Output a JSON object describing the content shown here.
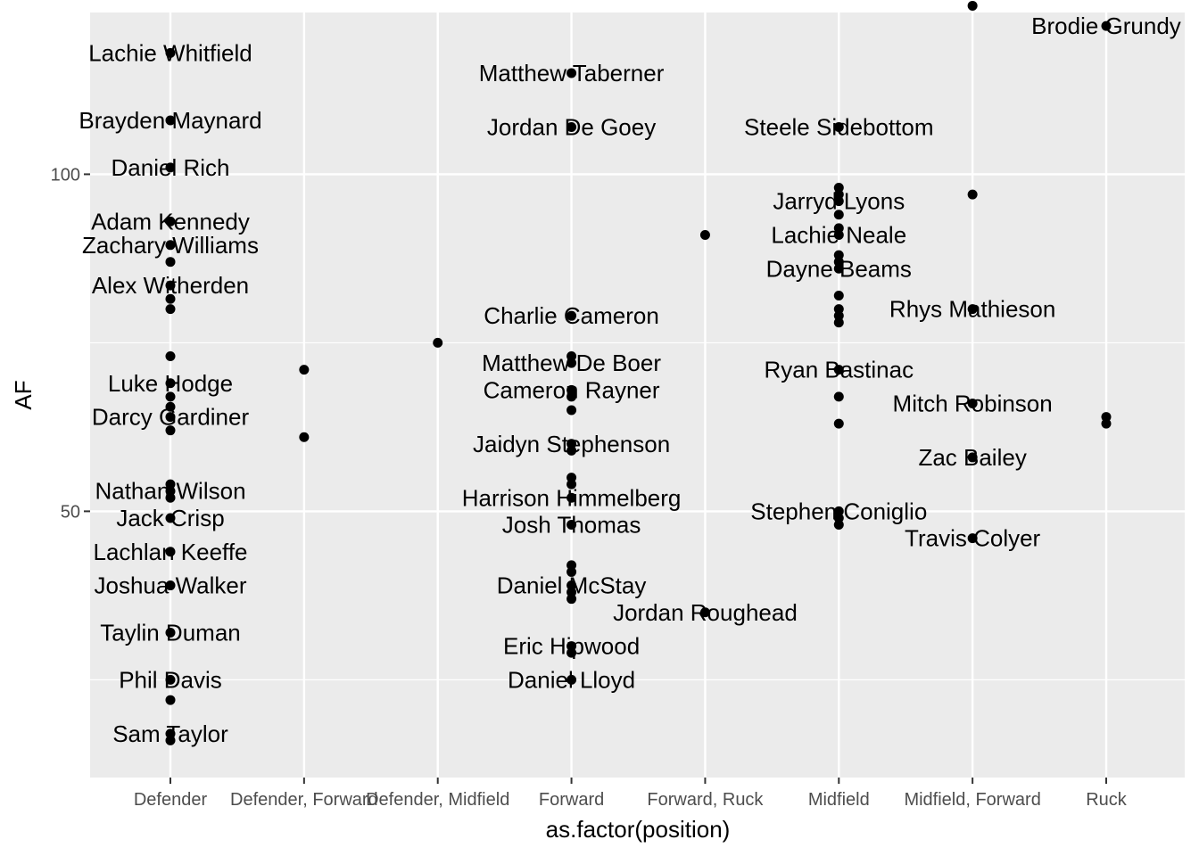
{
  "chart_data": {
    "type": "scatter",
    "xlabel": "as.factor(position)",
    "ylabel": "AF",
    "categories": [
      "Defender",
      "Defender, Forward",
      "Defender, Midfield",
      "Forward",
      "Forward, Ruck",
      "Midfield",
      "Midfield, Forward",
      "Ruck"
    ],
    "ylim": [
      10.5,
      124
    ],
    "yticks": [
      50,
      100
    ],
    "grid": true,
    "points": [
      {
        "x": "Defender",
        "y": 118,
        "label": "Lachie Whitfield"
      },
      {
        "x": "Defender",
        "y": 108,
        "label": "Brayden Maynard"
      },
      {
        "x": "Defender",
        "y": 101,
        "label": "Daniel Rich"
      },
      {
        "x": "Defender",
        "y": 93,
        "label": "Adam Kennedy"
      },
      {
        "x": "Defender",
        "y": 89.5,
        "label": "Zachary Williams"
      },
      {
        "x": "Defender",
        "y": 87
      },
      {
        "x": "Defender",
        "y": 83.5,
        "label": "Alex Witherden"
      },
      {
        "x": "Defender",
        "y": 81.5
      },
      {
        "x": "Defender",
        "y": 80
      },
      {
        "x": "Defender",
        "y": 73
      },
      {
        "x": "Defender",
        "y": 69,
        "label": "Luke Hodge"
      },
      {
        "x": "Defender",
        "y": 67
      },
      {
        "x": "Defender",
        "y": 65.5
      },
      {
        "x": "Defender",
        "y": 64,
        "label": "Darcy Gardiner"
      },
      {
        "x": "Defender",
        "y": 62
      },
      {
        "x": "Defender",
        "y": 54
      },
      {
        "x": "Defender",
        "y": 53,
        "label": "Nathan Wilson"
      },
      {
        "x": "Defender",
        "y": 52
      },
      {
        "x": "Defender",
        "y": 49,
        "label": "Jack Crisp"
      },
      {
        "x": "Defender",
        "y": 44,
        "label": "Lachlan Keeffe"
      },
      {
        "x": "Defender",
        "y": 39,
        "label": "Joshua Walker"
      },
      {
        "x": "Defender",
        "y": 32,
        "label": "Taylin Duman"
      },
      {
        "x": "Defender",
        "y": 25,
        "label": "Phil Davis"
      },
      {
        "x": "Defender",
        "y": 22
      },
      {
        "x": "Defender",
        "y": 17,
        "label": "Sam Taylor"
      },
      {
        "x": "Defender",
        "y": 16
      },
      {
        "x": "Defender, Forward",
        "y": 71
      },
      {
        "x": "Defender, Forward",
        "y": 61
      },
      {
        "x": "Defender, Midfield",
        "y": 75
      },
      {
        "x": "Forward",
        "y": 115,
        "label": "Matthew Taberner"
      },
      {
        "x": "Forward",
        "y": 107,
        "label": "Jordan De Goey"
      },
      {
        "x": "Forward",
        "y": 79,
        "label": "Charlie Cameron"
      },
      {
        "x": "Forward",
        "y": 73
      },
      {
        "x": "Forward",
        "y": 72,
        "label": "Matthew De Boer"
      },
      {
        "x": "Forward",
        "y": 68,
        "label": "Cameron Rayner"
      },
      {
        "x": "Forward",
        "y": 67
      },
      {
        "x": "Forward",
        "y": 65
      },
      {
        "x": "Forward",
        "y": 60,
        "label": "Jaidyn Stephenson"
      },
      {
        "x": "Forward",
        "y": 59
      },
      {
        "x": "Forward",
        "y": 55
      },
      {
        "x": "Forward",
        "y": 54
      },
      {
        "x": "Forward",
        "y": 52,
        "label": "Harrison Himmelberg"
      },
      {
        "x": "Forward",
        "y": 48,
        "label": "Josh Thomas"
      },
      {
        "x": "Forward",
        "y": 42
      },
      {
        "x": "Forward",
        "y": 41
      },
      {
        "x": "Forward",
        "y": 39,
        "label": "Daniel McStay"
      },
      {
        "x": "Forward",
        "y": 38
      },
      {
        "x": "Forward",
        "y": 37
      },
      {
        "x": "Forward",
        "y": 30,
        "label": "Eric Hipwood"
      },
      {
        "x": "Forward",
        "y": 29
      },
      {
        "x": "Forward",
        "y": 25,
        "label": "Daniel Lloyd"
      },
      {
        "x": "Forward, Ruck",
        "y": 91
      },
      {
        "x": "Forward, Ruck",
        "y": 35,
        "label": "Jordan Roughead"
      },
      {
        "x": "Midfield",
        "y": 107,
        "label": "Steele Sidebottom"
      },
      {
        "x": "Midfield",
        "y": 98
      },
      {
        "x": "Midfield",
        "y": 97
      },
      {
        "x": "Midfield",
        "y": 96,
        "label": "Jarryd Lyons"
      },
      {
        "x": "Midfield",
        "y": 94
      },
      {
        "x": "Midfield",
        "y": 92
      },
      {
        "x": "Midfield",
        "y": 91,
        "label": "Lachie Neale"
      },
      {
        "x": "Midfield",
        "y": 88
      },
      {
        "x": "Midfield",
        "y": 87
      },
      {
        "x": "Midfield",
        "y": 86,
        "label": "Dayne Beams"
      },
      {
        "x": "Midfield",
        "y": 82
      },
      {
        "x": "Midfield",
        "y": 80
      },
      {
        "x": "Midfield",
        "y": 79
      },
      {
        "x": "Midfield",
        "y": 78
      },
      {
        "x": "Midfield",
        "y": 71,
        "label": "Ryan Bastinac"
      },
      {
        "x": "Midfield",
        "y": 67
      },
      {
        "x": "Midfield",
        "y": 63
      },
      {
        "x": "Midfield",
        "y": 50,
        "label": "Stephen Coniglio"
      },
      {
        "x": "Midfield",
        "y": 49
      },
      {
        "x": "Midfield",
        "y": 48
      },
      {
        "x": "Midfield, Forward",
        "y": 125
      },
      {
        "x": "Midfield, Forward",
        "y": 97
      },
      {
        "x": "Midfield, Forward",
        "y": 80,
        "label": "Rhys Mathieson"
      },
      {
        "x": "Midfield, Forward",
        "y": 66,
        "label": "Mitch Robinson"
      },
      {
        "x": "Midfield, Forward",
        "y": 58,
        "label": "Zac Bailey"
      },
      {
        "x": "Midfield, Forward",
        "y": 46,
        "label": "Travis Colyer"
      },
      {
        "x": "Ruck",
        "y": 122,
        "label": "Brodie Grundy"
      },
      {
        "x": "Ruck",
        "y": 64
      },
      {
        "x": "Ruck",
        "y": 63
      }
    ]
  }
}
